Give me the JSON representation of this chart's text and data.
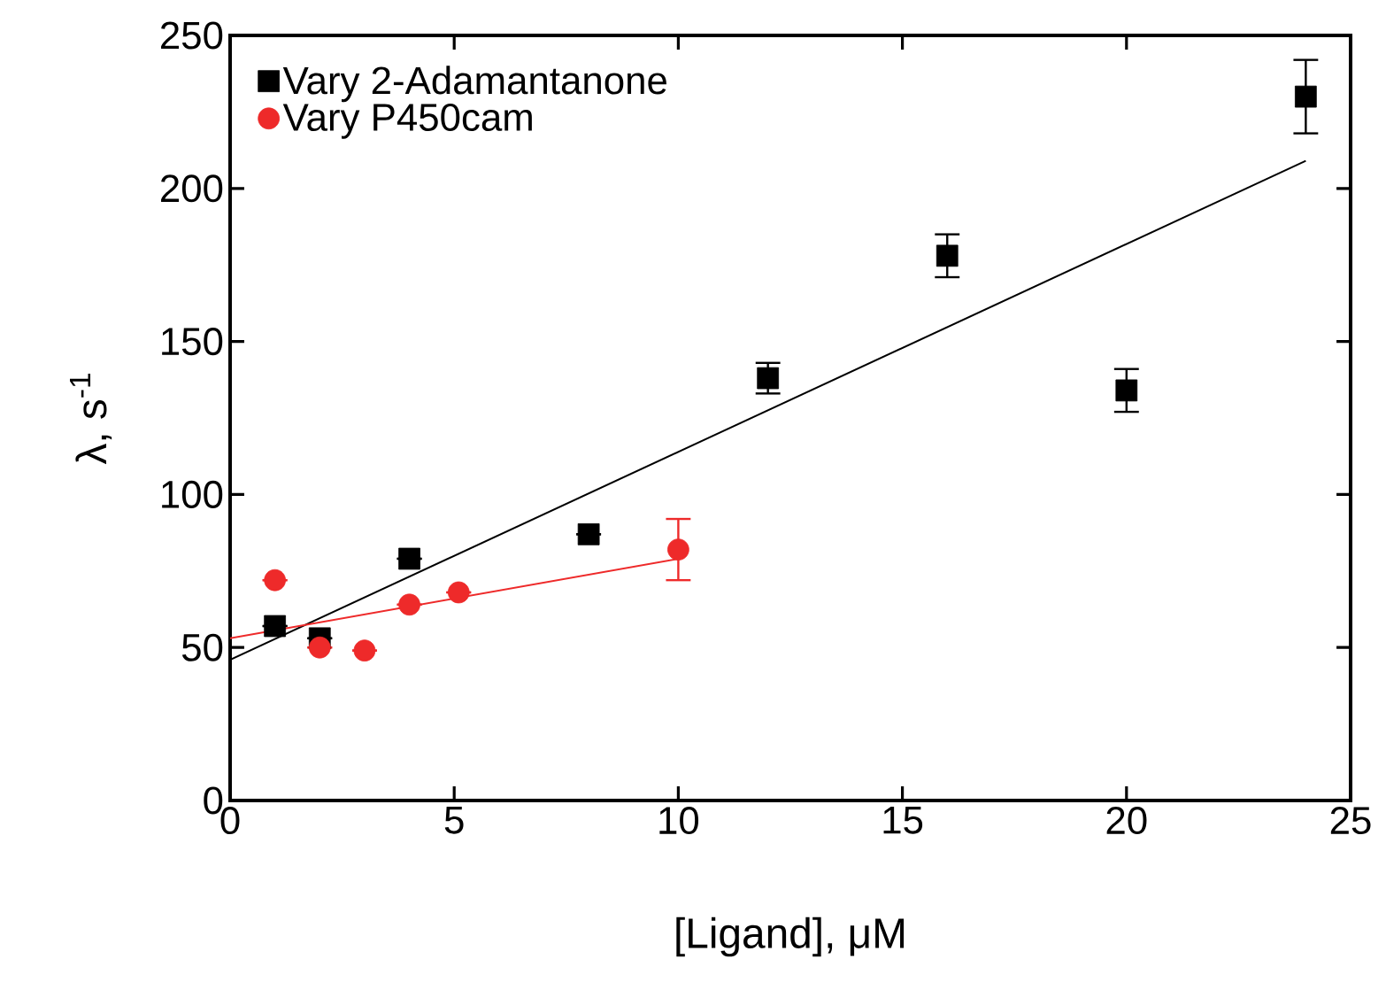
{
  "chart_data": {
    "type": "scatter",
    "xlabel": "[Ligand], μM",
    "ylabel": "λ, s$^{-1}$",
    "xlim": [
      0,
      25
    ],
    "ylim": [
      0,
      250
    ],
    "xticks": [
      0,
      5,
      10,
      15,
      20,
      25
    ],
    "yticks": [
      0,
      50,
      100,
      150,
      200,
      250
    ],
    "grid": false,
    "legend": "top left",
    "series": [
      {
        "name": "Vary 2-Adamantanone",
        "marker": "square",
        "color": "#000000",
        "x": [
          1,
          2,
          4,
          8,
          12,
          16,
          20,
          24
        ],
        "values": [
          57,
          53,
          79,
          87,
          138,
          178,
          134,
          230
        ],
        "errors": [
          null,
          null,
          null,
          null,
          5,
          7,
          7,
          12
        ]
      },
      {
        "name": "Vary P450cam",
        "marker": "circle",
        "color": "#ee2a2a",
        "x": [
          1,
          2,
          3,
          4,
          5.1,
          10
        ],
        "values": [
          72,
          50,
          49,
          64,
          68,
          82
        ],
        "errors": [
          null,
          null,
          null,
          null,
          null,
          10
        ]
      },
      {
        "type": "line",
        "marker": "none",
        "color": "#000000",
        "x": [
          0,
          24
        ],
        "values": [
          46,
          209
        ]
      },
      {
        "type": "line",
        "marker": "none",
        "color": "#ee2a2a",
        "x": [
          0,
          10
        ],
        "values": [
          53,
          79
        ]
      }
    ]
  }
}
